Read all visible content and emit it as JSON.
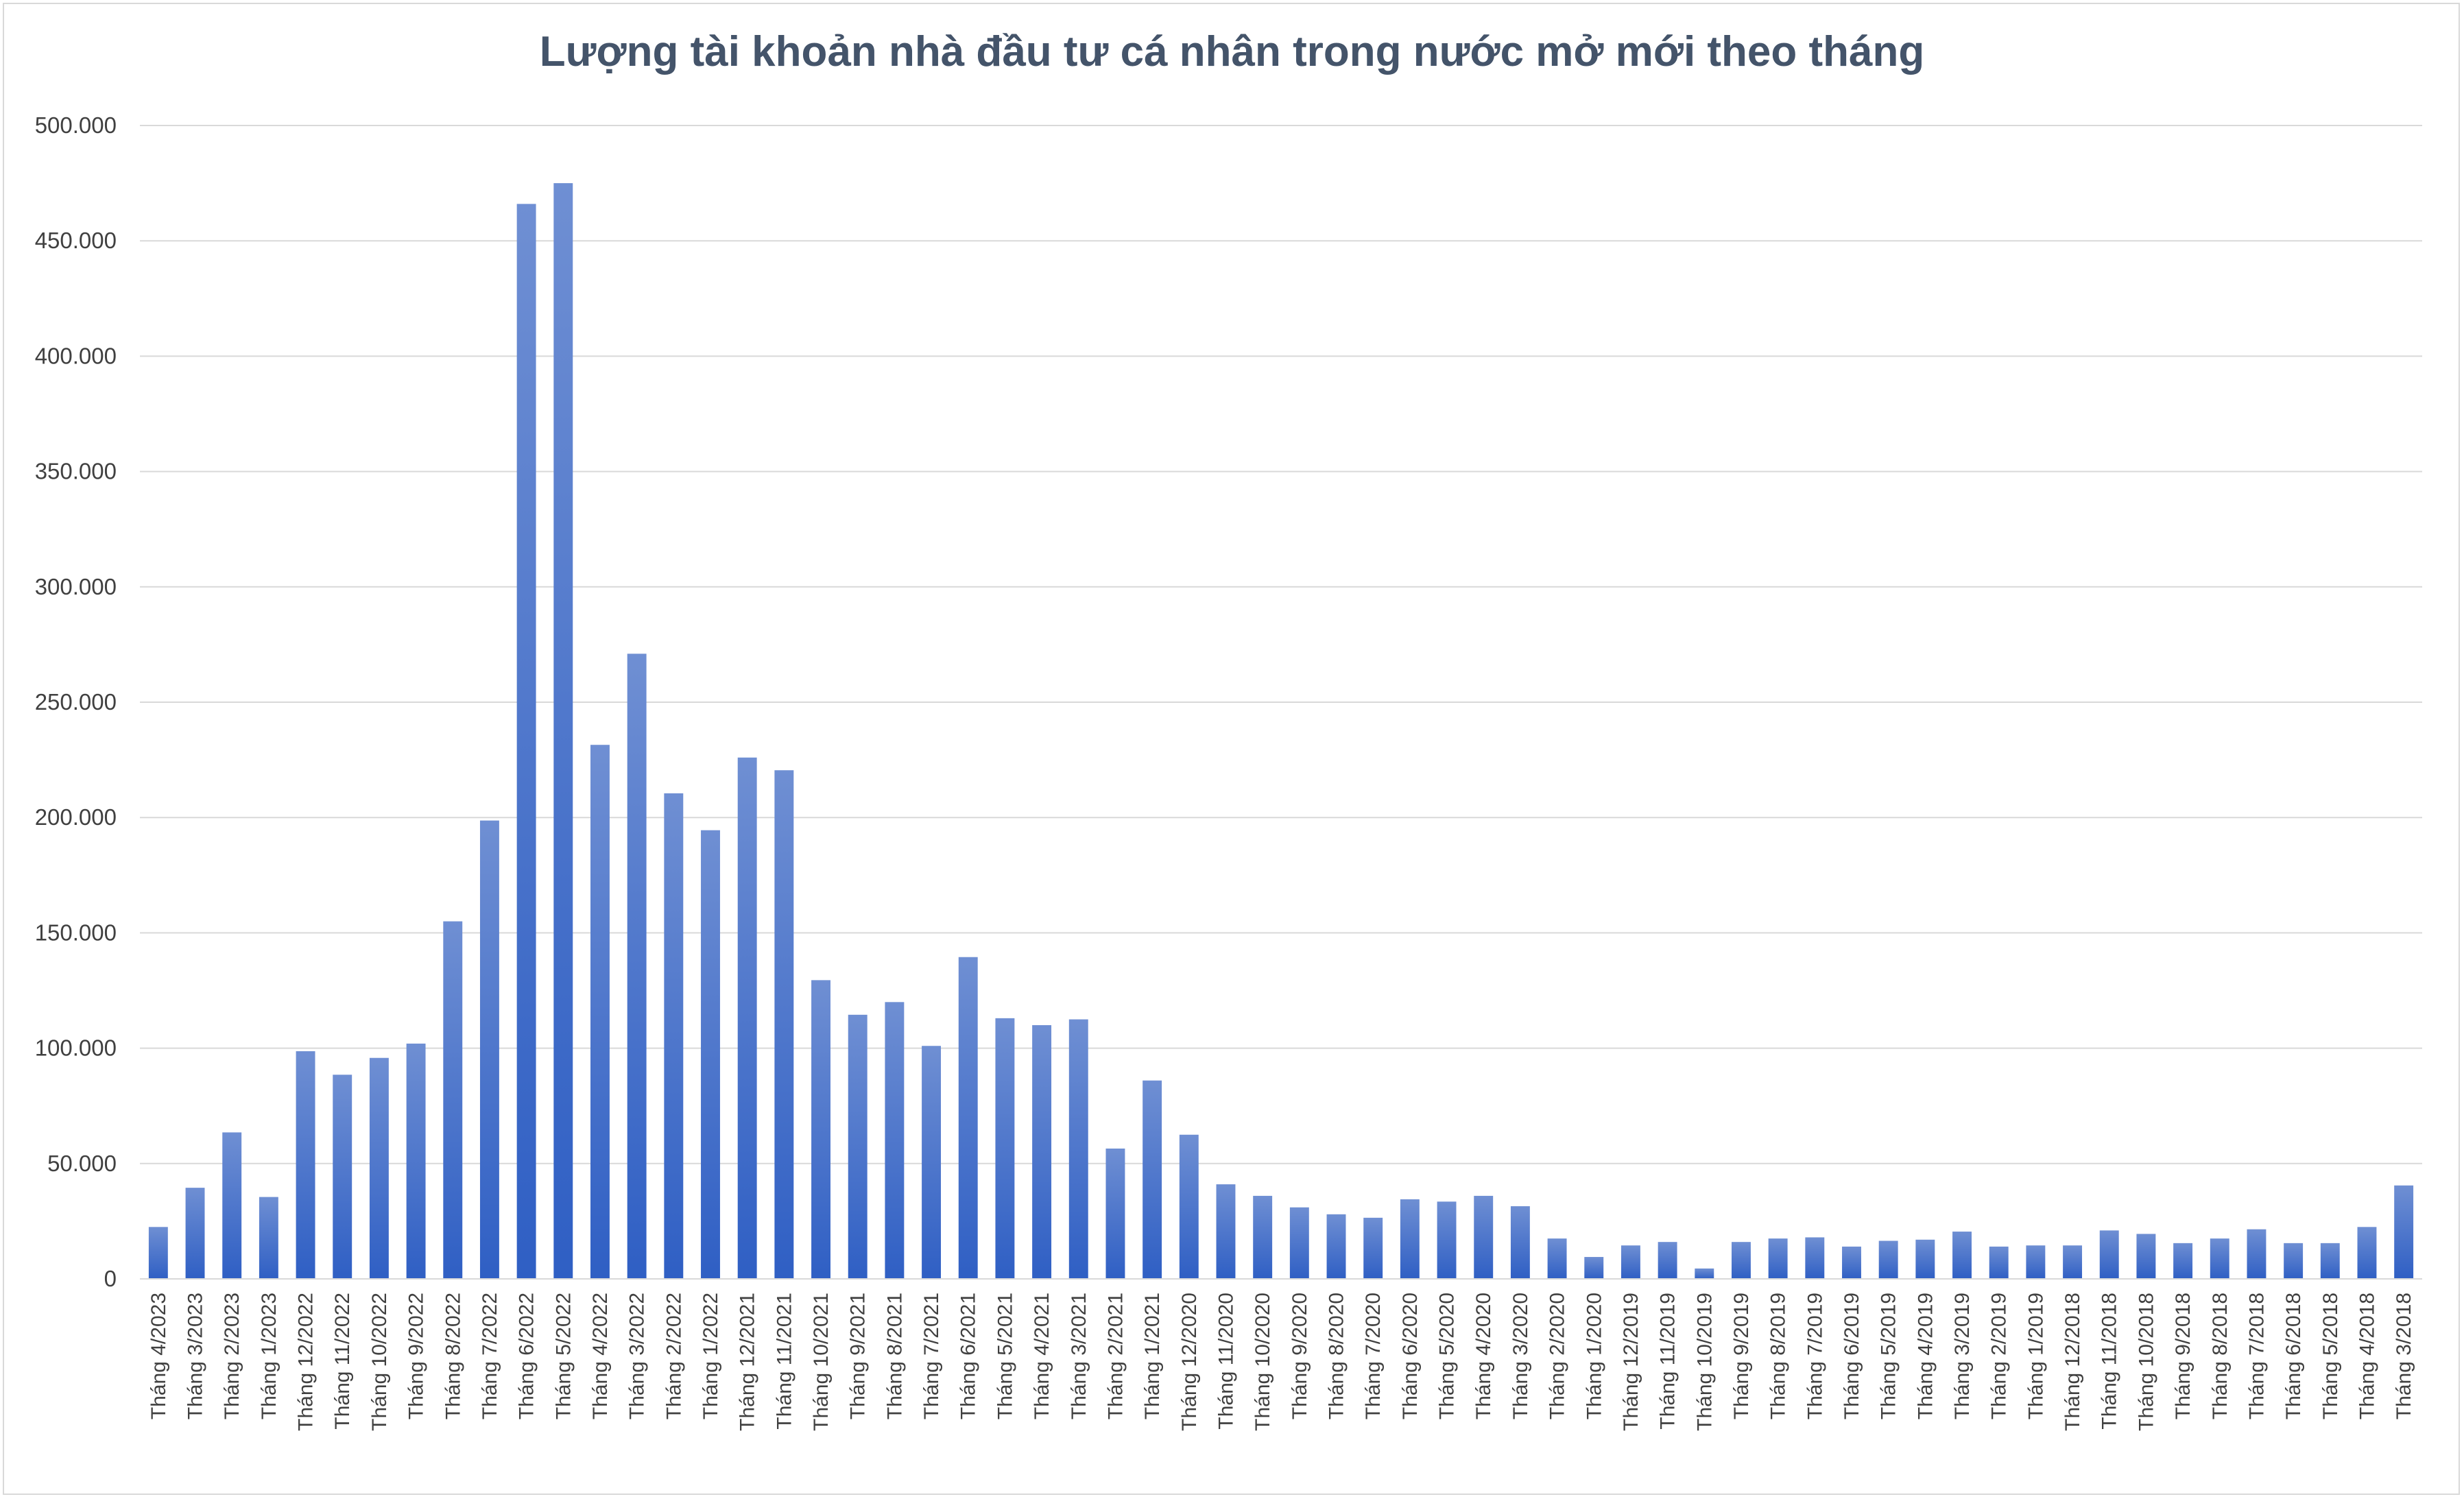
{
  "chart_data": {
    "type": "bar",
    "title": "Lượng tài khoản nhà đầu tư cá nhân trong nước mở mới theo tháng",
    "xlabel": "",
    "ylabel": "",
    "ylim": [
      0,
      500000
    ],
    "yticks": [
      0,
      50000,
      100000,
      150000,
      200000,
      250000,
      300000,
      350000,
      400000,
      450000,
      500000
    ],
    "ytick_labels": [
      "0",
      "50.000",
      "100.000",
      "150.000",
      "200.000",
      "250.000",
      "300.000",
      "350.000",
      "400.000",
      "450.000",
      "500.000"
    ],
    "grid": true,
    "legend": "none",
    "bar_color_top": "#6f8fd3",
    "bar_color_bottom": "#2f5fc4",
    "grid_color": "#d9d9d9",
    "categories": [
      "Tháng 4/2023",
      "Tháng 3/2023",
      "Tháng 2/2023",
      "Tháng 1/2023",
      "Tháng 12/2022",
      "Tháng 11/2022",
      "Tháng 10/2022",
      "Tháng 9/2022",
      "Tháng 8/2022",
      "Tháng 7/2022",
      "Tháng 6/2022",
      "Tháng 5/2022",
      "Tháng 4/2022",
      "Tháng 3/2022",
      "Tháng 2/2022",
      "Tháng 1/2022",
      "Tháng 12/2021",
      "Tháng 11/2021",
      "Tháng 10/2021",
      "Tháng 9/2021",
      "Tháng 8/2021",
      "Tháng 7/2021",
      "Tháng 6/2021",
      "Tháng 5/2021",
      "Tháng 4/2021",
      "Tháng 3/2021",
      "Tháng 2/2021",
      "Tháng 1/2021",
      "Tháng 12/2020",
      "Tháng 11/2020",
      "Tháng 10/2020",
      "Tháng 9/2020",
      "Tháng 8/2020",
      "Tháng 7/2020",
      "Tháng 6/2020",
      "Tháng 5/2020",
      "Tháng 4/2020",
      "Tháng 3/2020",
      "Tháng 2/2020",
      "Tháng 1/2020",
      "Tháng 12/2019",
      "Tháng 11/2019",
      "Tháng 10/2019",
      "Tháng 9/2019",
      "Tháng 8/2019",
      "Tháng 7/2019",
      "Tháng 6/2019",
      "Tháng 5/2019",
      "Tháng 4/2019",
      "Tháng 3/2019",
      "Tháng 2/2019",
      "Tháng 1/2019",
      "Tháng 12/2018",
      "Tháng 11/2018",
      "Tháng 10/2018",
      "Tháng 9/2018",
      "Tháng 8/2018",
      "Tháng 7/2018",
      "Tháng 6/2018",
      "Tháng 5/2018",
      "Tháng 4/2018",
      "Tháng 3/2018"
    ],
    "values": [
      22500,
      39500,
      63500,
      35500,
      98700,
      88500,
      95800,
      102000,
      155000,
      198700,
      466000,
      475000,
      231500,
      271000,
      210500,
      194500,
      226000,
      220500,
      129500,
      114500,
      120000,
      101000,
      139500,
      113000,
      110000,
      112500,
      56500,
      86000,
      62500,
      41000,
      36000,
      31000,
      28000,
      26500,
      34500,
      33500,
      36000,
      31500,
      17500,
      9500,
      14500,
      16000,
      4500,
      16000,
      17500,
      18000,
      14000,
      16500,
      17000,
      20500,
      14000,
      14500,
      14500,
      21000,
      19500,
      15500,
      17500,
      21500,
      15500,
      15500,
      22500,
      40500
    ]
  }
}
